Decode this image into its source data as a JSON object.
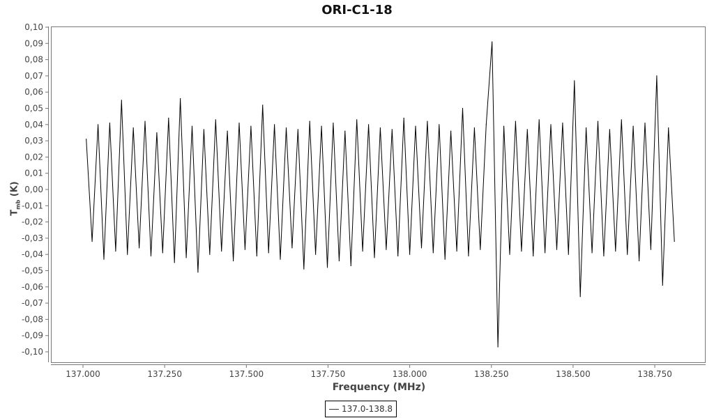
{
  "chart_data": {
    "type": "line",
    "title": "ORI-C1-18",
    "xlabel": "Frequency (MHz)",
    "ylabel_main": "T",
    "ylabel_sub": "mb",
    "ylabel_unit": "(K)",
    "xlim": [
      136.9,
      138.91
    ],
    "ylim": [
      -0.1,
      0.1
    ],
    "x_ticks": [
      "137.000",
      "137.250",
      "137.500",
      "137.750",
      "138.000",
      "138.250",
      "138.500",
      "138.750"
    ],
    "x_tick_values": [
      137.0,
      137.25,
      137.5,
      137.75,
      138.0,
      138.25,
      138.5,
      138.75
    ],
    "y_ticks": [
      "0,10",
      "0,09",
      "0,08",
      "0,07",
      "0,06",
      "0,05",
      "0,04",
      "0,03",
      "0,02",
      "0,01",
      "0,00",
      "-0,01",
      "-0,02",
      "-0,03",
      "-0,04",
      "-0,05",
      "-0,06",
      "-0,07",
      "-0,08",
      "-0,09",
      "-0,10"
    ],
    "y_tick_values": [
      0.1,
      0.09,
      0.08,
      0.07,
      0.06,
      0.05,
      0.04,
      0.03,
      0.02,
      0.01,
      0.0,
      -0.01,
      -0.02,
      -0.03,
      -0.04,
      -0.05,
      -0.06,
      -0.07,
      -0.08,
      -0.09,
      -0.1
    ],
    "grid": false,
    "legend_position": "bottom",
    "series": [
      {
        "name": "137.0-138.8",
        "color": "#000000",
        "x_start": 137.01,
        "x_step": 0.018,
        "y": [
          0.031,
          -0.032,
          0.04,
          -0.043,
          0.041,
          -0.038,
          0.055,
          -0.04,
          0.038,
          -0.036,
          0.042,
          -0.041,
          0.035,
          -0.039,
          0.044,
          -0.045,
          0.056,
          -0.042,
          0.039,
          -0.051,
          0.037,
          -0.04,
          0.043,
          -0.038,
          0.036,
          -0.044,
          0.041,
          -0.037,
          0.039,
          -0.041,
          0.052,
          -0.039,
          0.04,
          -0.043,
          0.038,
          -0.036,
          0.037,
          -0.049,
          0.042,
          -0.04,
          0.039,
          -0.048,
          0.041,
          -0.044,
          0.036,
          -0.047,
          0.043,
          -0.038,
          0.04,
          -0.042,
          0.038,
          -0.037,
          0.037,
          -0.041,
          0.044,
          -0.04,
          0.039,
          -0.036,
          0.042,
          -0.039,
          0.04,
          -0.043,
          0.036,
          -0.038,
          0.05,
          -0.041,
          0.038,
          -0.037,
          0.04,
          0.091,
          -0.097,
          0.039,
          -0.04,
          0.042,
          -0.038,
          0.037,
          -0.041,
          0.043,
          -0.039,
          0.04,
          -0.037,
          0.041,
          -0.04,
          0.067,
          -0.066,
          0.038,
          -0.039,
          0.042,
          -0.041,
          0.037,
          -0.038,
          0.043,
          -0.04,
          0.039,
          -0.044,
          0.041,
          -0.037,
          0.07,
          -0.059,
          0.038,
          -0.032
        ]
      }
    ]
  }
}
